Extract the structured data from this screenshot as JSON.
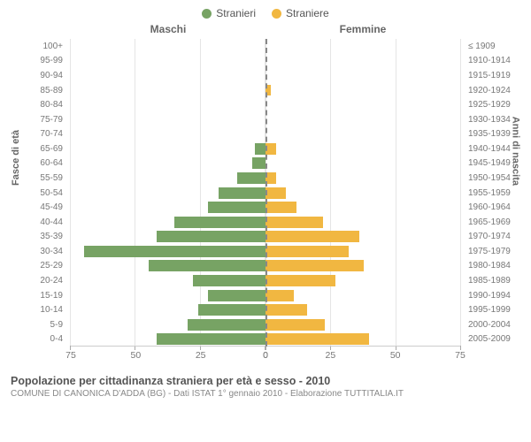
{
  "legend": {
    "male": {
      "label": "Stranieri",
      "color": "#77a364"
    },
    "female": {
      "label": "Straniere",
      "color": "#f1b741"
    }
  },
  "top_labels": {
    "left": "Maschi",
    "right": "Femmine"
  },
  "axis_titles": {
    "left": "Fasce di età",
    "right": "Anni di nascita"
  },
  "pyramid": {
    "type": "population-pyramid",
    "xmax": 75,
    "xticks": [
      0,
      25,
      50,
      75
    ],
    "background_color": "#ffffff",
    "grid_color": "#e5e5e5",
    "center_dash_color": "#888888",
    "age_groups": [
      {
        "age": "100+",
        "years": "≤ 1909",
        "m": 0,
        "f": 0
      },
      {
        "age": "95-99",
        "years": "1910-1914",
        "m": 0,
        "f": 0
      },
      {
        "age": "90-94",
        "years": "1915-1919",
        "m": 0,
        "f": 0
      },
      {
        "age": "85-89",
        "years": "1920-1924",
        "m": 0,
        "f": 2
      },
      {
        "age": "80-84",
        "years": "1925-1929",
        "m": 0,
        "f": 0
      },
      {
        "age": "75-79",
        "years": "1930-1934",
        "m": 0,
        "f": 0
      },
      {
        "age": "70-74",
        "years": "1935-1939",
        "m": 0,
        "f": 0
      },
      {
        "age": "65-69",
        "years": "1940-1944",
        "m": 4,
        "f": 4
      },
      {
        "age": "60-64",
        "years": "1945-1949",
        "m": 5,
        "f": 0
      },
      {
        "age": "55-59",
        "years": "1950-1954",
        "m": 11,
        "f": 4
      },
      {
        "age": "50-54",
        "years": "1955-1959",
        "m": 18,
        "f": 8
      },
      {
        "age": "45-49",
        "years": "1960-1964",
        "m": 22,
        "f": 12
      },
      {
        "age": "40-44",
        "years": "1965-1969",
        "m": 35,
        "f": 22
      },
      {
        "age": "35-39",
        "years": "1970-1974",
        "m": 42,
        "f": 36
      },
      {
        "age": "30-34",
        "years": "1975-1979",
        "m": 70,
        "f": 32
      },
      {
        "age": "25-29",
        "years": "1980-1984",
        "m": 45,
        "f": 38
      },
      {
        "age": "20-24",
        "years": "1985-1989",
        "m": 28,
        "f": 27
      },
      {
        "age": "15-19",
        "years": "1990-1994",
        "m": 22,
        "f": 11
      },
      {
        "age": "10-14",
        "years": "1995-1999",
        "m": 26,
        "f": 16
      },
      {
        "age": "5-9",
        "years": "2000-2004",
        "m": 30,
        "f": 23
      },
      {
        "age": "0-4",
        "years": "2005-2009",
        "m": 42,
        "f": 40
      }
    ]
  },
  "footer": {
    "title": "Popolazione per cittadinanza straniera per età e sesso - 2010",
    "subtitle": "COMUNE DI CANONICA D'ADDA (BG) - Dati ISTAT 1° gennaio 2010 - Elaborazione TUTTITALIA.IT"
  }
}
